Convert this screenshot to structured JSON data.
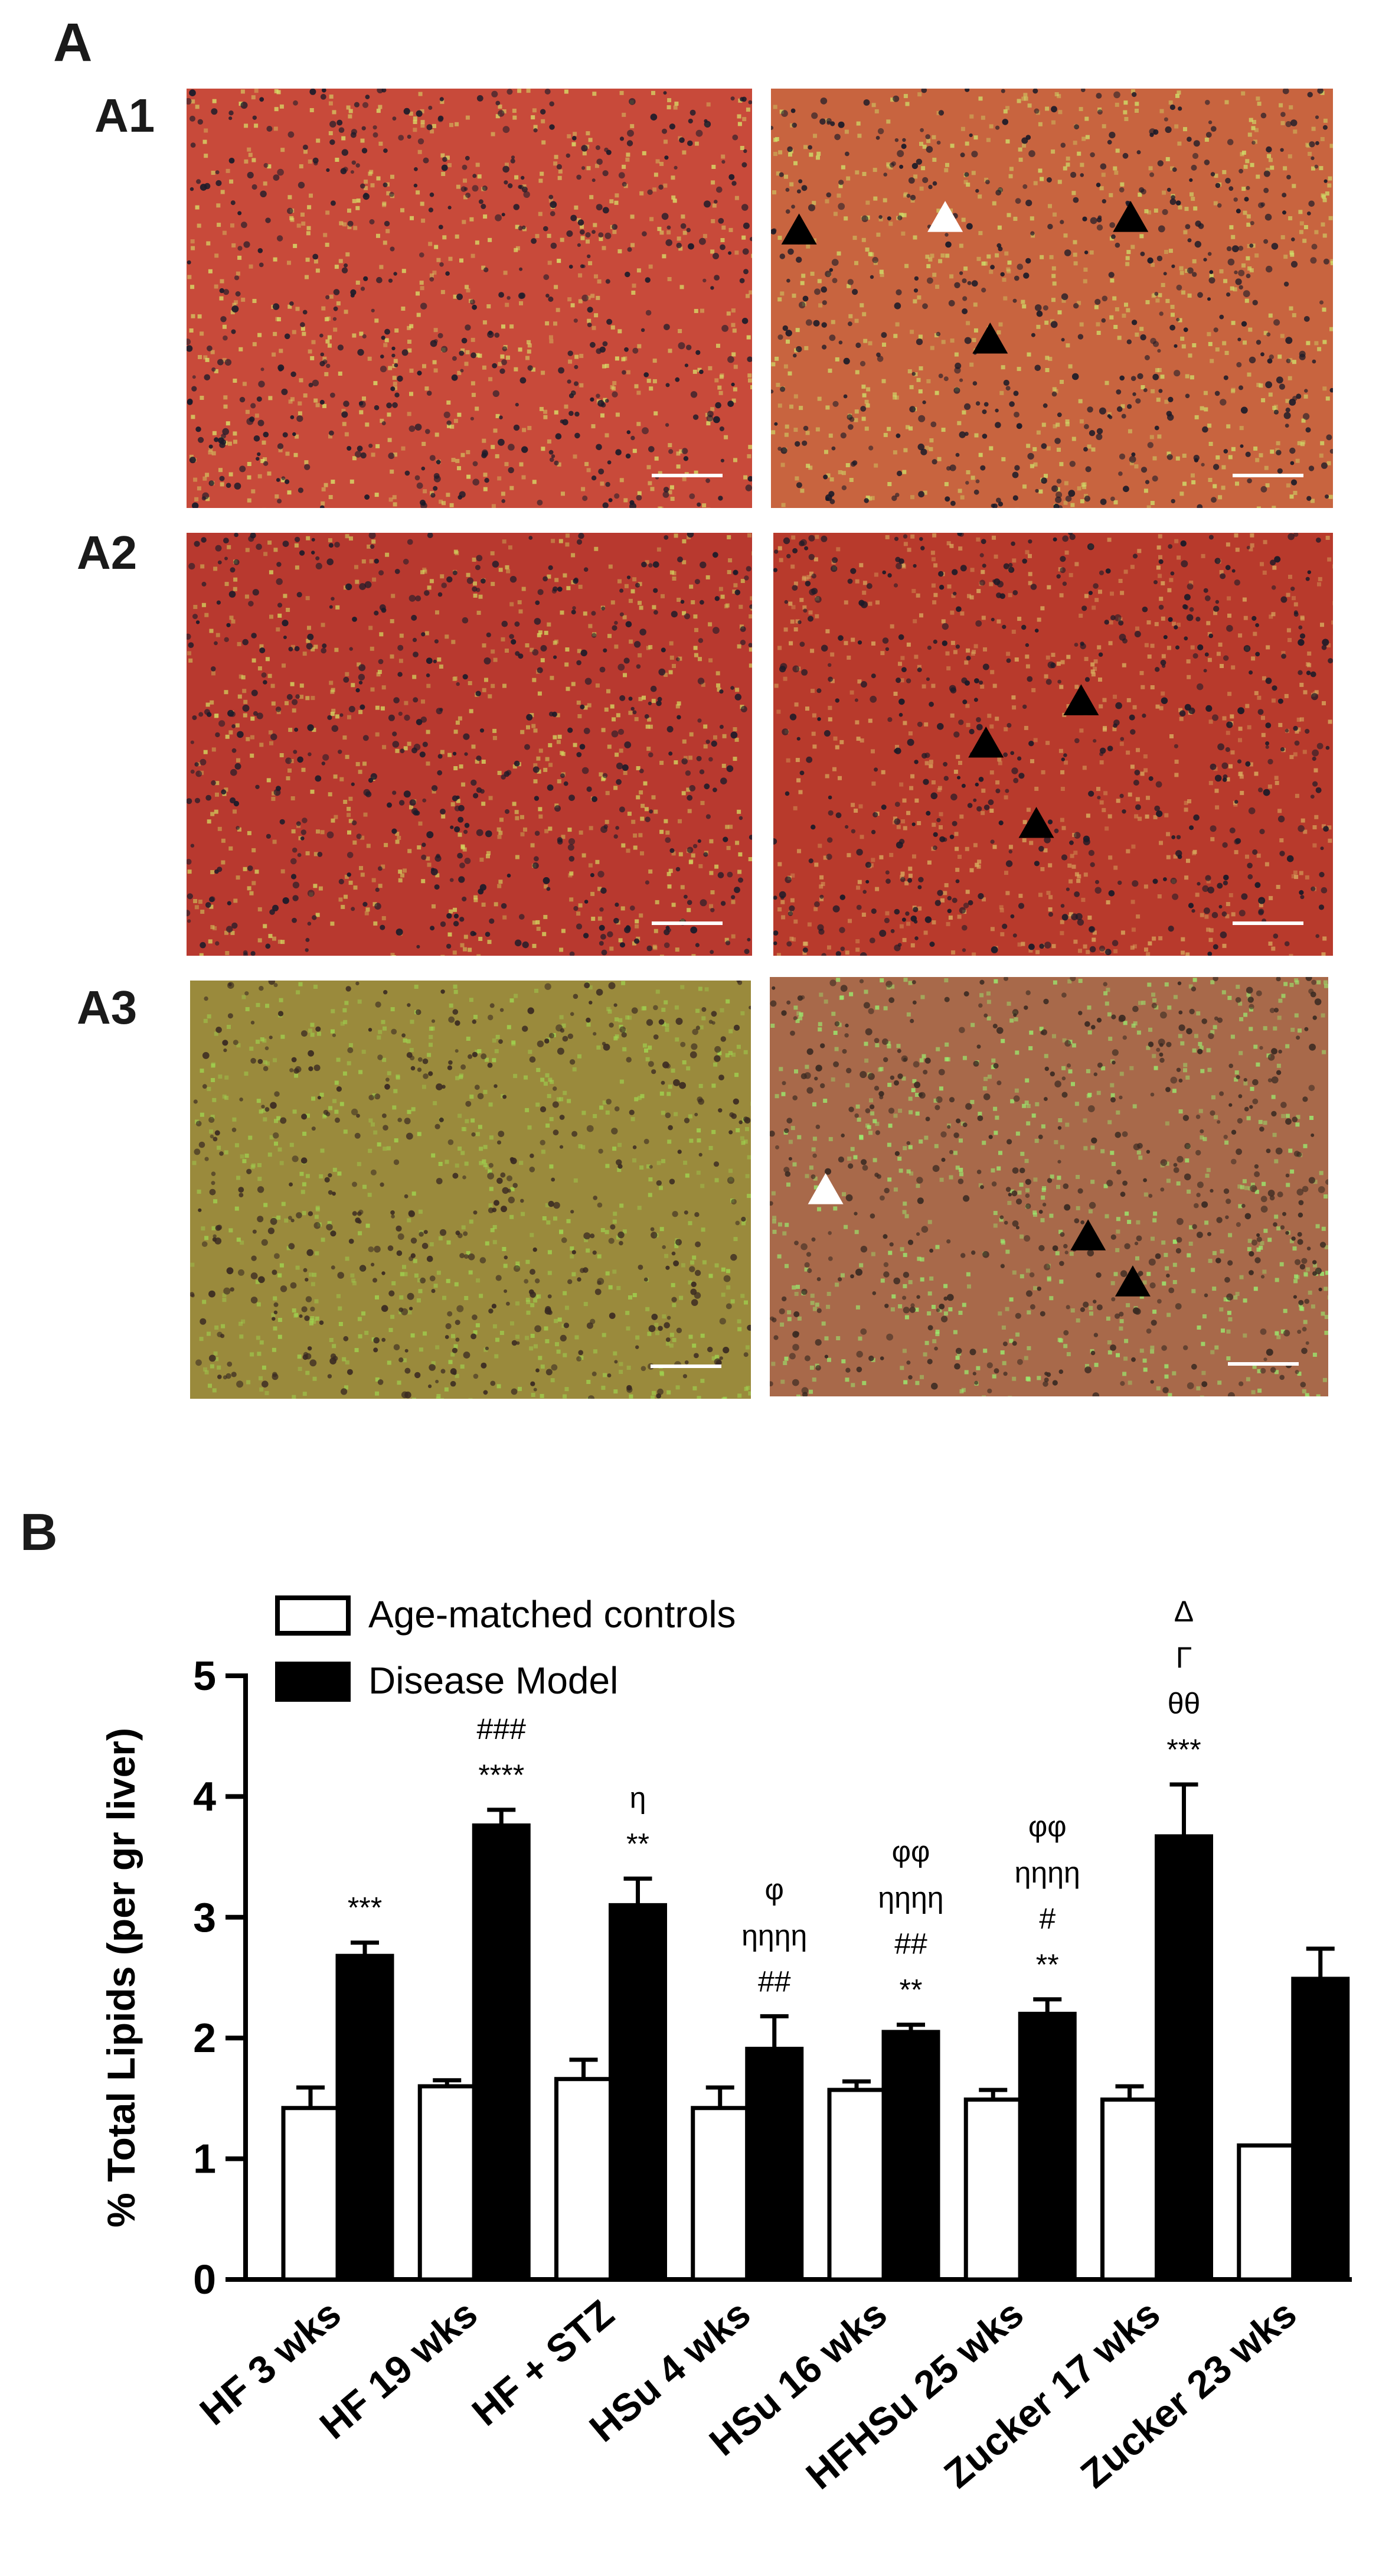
{
  "figure": {
    "panel_a_label": "A",
    "panel_b_label": "B",
    "rows": [
      {
        "label": "A1",
        "left": {
          "tint": "#c84a3a",
          "dot": "#1b1b2a",
          "speck": "#d8e36a",
          "markers": []
        },
        "right": {
          "tint": "#c8643f",
          "dot": "#1a1a28",
          "speck": "#cfe06a",
          "markers": [
            {
              "fill": "#000000",
              "rx": 0.05,
              "ry": 0.34
            },
            {
              "fill": "#ffffff",
              "rx": 0.31,
              "ry": 0.31
            },
            {
              "fill": "#000000",
              "rx": 0.64,
              "ry": 0.31
            },
            {
              "fill": "#000000",
              "rx": 0.39,
              "ry": 0.6
            }
          ]
        }
      },
      {
        "label": "A2",
        "left": {
          "tint": "#b8392f",
          "dot": "#1b1b2a",
          "speck": "#d3d860",
          "markers": []
        },
        "right": {
          "tint": "#b83a2c",
          "dot": "#1a1a28",
          "speck": "#d9b060",
          "markers": [
            {
              "fill": "#000000",
              "rx": 0.38,
              "ry": 0.5
            },
            {
              "fill": "#000000",
              "rx": 0.55,
              "ry": 0.4
            },
            {
              "fill": "#000000",
              "rx": 0.47,
              "ry": 0.69
            }
          ]
        }
      },
      {
        "label": "A3",
        "left": {
          "tint": "#9a8a3c",
          "dot": "#3a2a22",
          "speck": "#9fd650",
          "markers": []
        },
        "right": {
          "tint": "#a8694a",
          "dot": "#3a2a22",
          "speck": "#9af070",
          "markers": [
            {
              "fill": "#ffffff",
              "rx": 0.1,
              "ry": 0.51
            },
            {
              "fill": "#000000",
              "rx": 0.57,
              "ry": 0.62
            },
            {
              "fill": "#000000",
              "rx": 0.65,
              "ry": 0.73
            }
          ]
        }
      }
    ]
  },
  "chart_data": {
    "type": "bar",
    "ylabel": "% Total Lipids (per gr liver)",
    "ylim": [
      0,
      5
    ],
    "yticks": [
      "0",
      "1",
      "2",
      "3",
      "4",
      "5"
    ],
    "legend_position": "top-left",
    "categories": [
      "HF 3 wks",
      "HF 19 wks",
      "HF + STZ",
      "HSu 4 wks",
      "HSu 16 wks",
      "HFHSu 25 wks",
      "Zucker 17 wks",
      "Zucker 23 wks"
    ],
    "series": [
      {
        "name": "Age-matched controls",
        "fill": "#ffffff",
        "values": [
          1.42,
          1.6,
          1.66,
          1.42,
          1.57,
          1.49,
          1.49,
          1.11
        ],
        "errors": [
          0.17,
          0.05,
          0.16,
          0.17,
          0.07,
          0.08,
          0.11,
          0.0
        ]
      },
      {
        "name": "Disease Model",
        "fill": "#000000",
        "values": [
          2.68,
          3.76,
          3.1,
          1.91,
          2.05,
          2.2,
          3.67,
          2.49
        ],
        "errors": [
          0.11,
          0.13,
          0.22,
          0.27,
          0.06,
          0.12,
          0.43,
          0.25
        ]
      }
    ],
    "annotations": [
      [
        "***"
      ],
      [
        "****",
        "###"
      ],
      [
        "**",
        "η"
      ],
      [
        "##",
        "ηηηη",
        "φ"
      ],
      [
        "**",
        "##",
        "ηηηη",
        "φφ"
      ],
      [
        "**",
        "#",
        "ηηηη",
        "φφ"
      ],
      [
        "***",
        "θθ",
        "Γ",
        "Δ"
      ],
      []
    ]
  }
}
